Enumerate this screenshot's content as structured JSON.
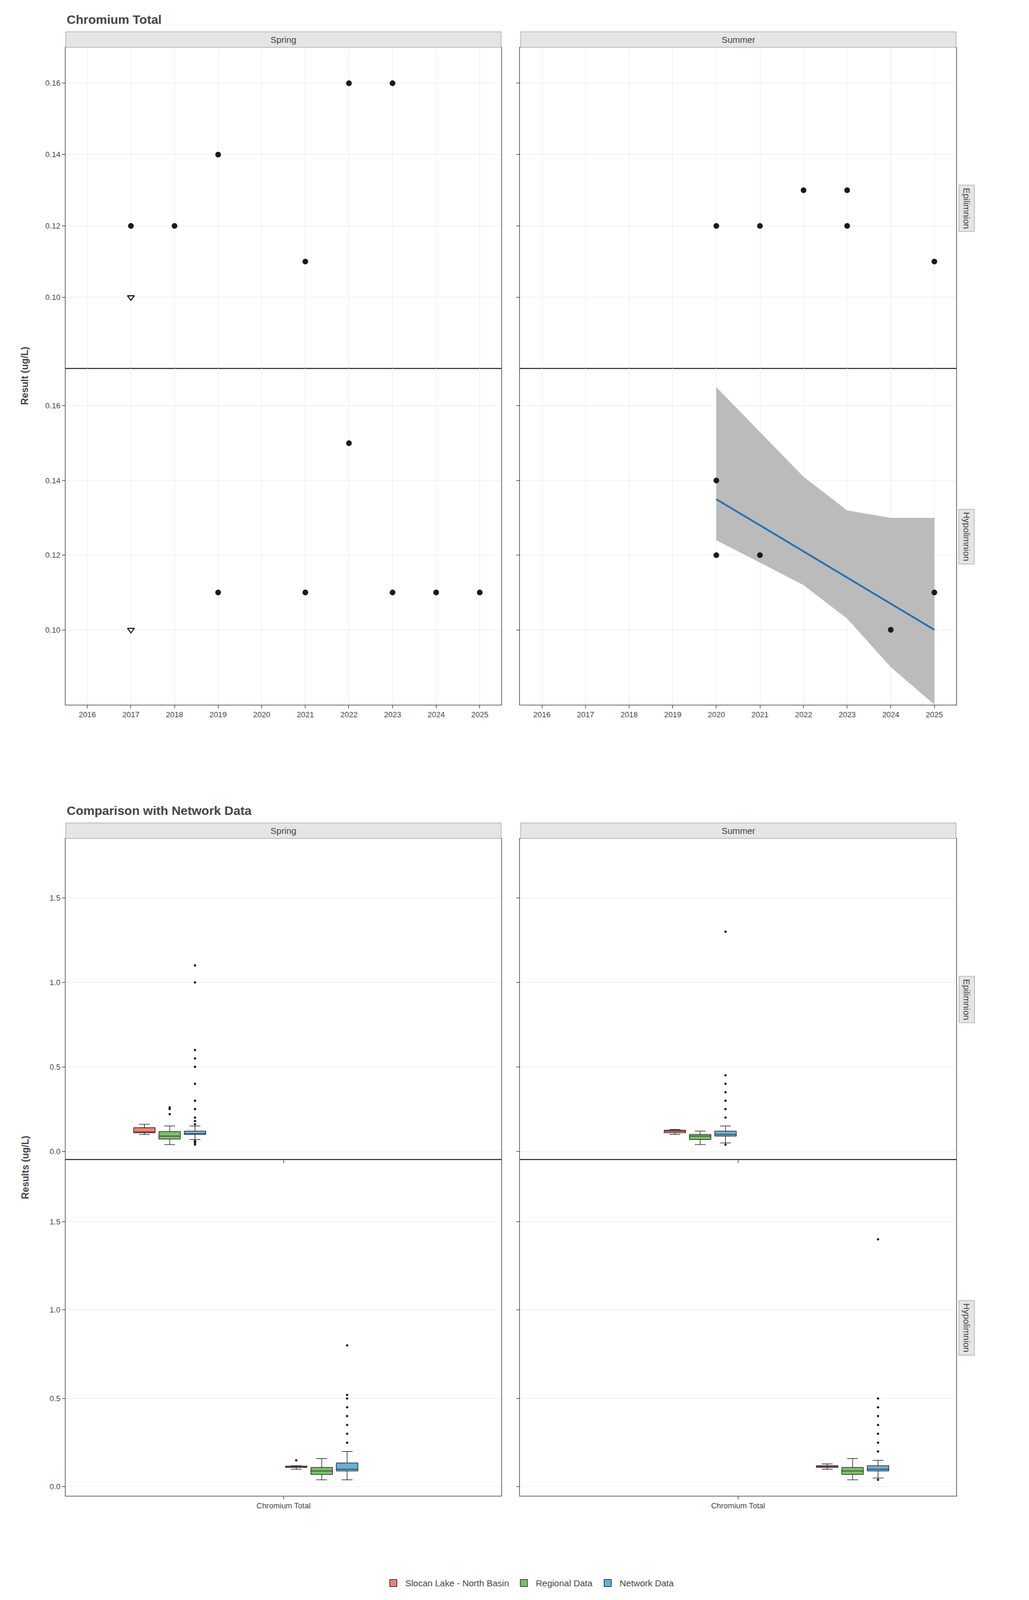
{
  "chart_data": [
    {
      "type": "scatter",
      "title": "Chromium Total",
      "y_label": "Result (ug/L)",
      "column_labels": [
        "Spring",
        "Summer"
      ],
      "row_labels": [
        "Epilimnion",
        "Hypolimnion"
      ],
      "xlim": [
        2015.5,
        2025.5
      ],
      "xticks": [
        2016,
        2017,
        2018,
        2019,
        2020,
        2021,
        2022,
        2023,
        2024,
        2025
      ],
      "ylim": [
        0.08,
        0.17
      ],
      "yticks": [
        {
          "value": 0.1,
          "label": "0.10"
        },
        0.12,
        0.14,
        0.16
      ],
      "grid": true,
      "panels": [
        {
          "series": [
            {
              "type": "scatter",
              "marker": "circle",
              "color": "#1A1A1A",
              "x": [
                2017,
                2018,
                2019,
                2022,
                2023,
                2021
              ],
              "values": [
                0.12,
                0.12,
                0.14,
                0.16,
                0.16,
                0.11
              ]
            },
            {
              "type": "scatter",
              "marker": "triangle-down-open",
              "color": "#000000",
              "x": [
                2017
              ],
              "values": [
                0.1
              ]
            }
          ]
        },
        {
          "series": [
            {
              "type": "scatter",
              "marker": "circle",
              "color": "#1A1A1A",
              "x": [
                2020,
                2021,
                2022,
                2023,
                2023,
                2025
              ],
              "values": [
                0.12,
                0.12,
                0.13,
                0.13,
                0.12,
                0.11
              ]
            }
          ]
        },
        {
          "series": [
            {
              "type": "scatter",
              "marker": "circle",
              "color": "#1A1A1A",
              "x": [
                2019,
                2021,
                2022,
                2023,
                2024,
                2025
              ],
              "values": [
                0.11,
                0.11,
                0.15,
                0.11,
                0.11,
                0.11
              ]
            },
            {
              "type": "scatter",
              "marker": "triangle-down-open",
              "color": "#000000",
              "x": [
                2017
              ],
              "values": [
                0.1
              ]
            }
          ]
        },
        {
          "series": [
            {
              "type": "band",
              "color": "#BBBBBB",
              "x": [
                2020,
                2021,
                2022,
                2023,
                2024,
                2025
              ],
              "upper": [
                0.165,
                0.153,
                0.141,
                0.132,
                0.13,
                0.13
              ],
              "lower": [
                0.124,
                0.118,
                0.112,
                0.103,
                0.09,
                0.08
              ]
            },
            {
              "type": "scatter",
              "marker": "circle",
              "color": "#1A1A1A",
              "x": [
                2020,
                2020,
                2021,
                2024,
                2025
              ],
              "values": [
                0.14,
                0.12,
                0.12,
                0.1,
                0.11
              ]
            },
            {
              "type": "line",
              "color": "#2171B5",
              "x": [
                2020,
                2021,
                2022,
                2023,
                2024,
                2025
              ],
              "values": [
                0.135,
                0.128,
                0.121,
                0.114,
                0.107,
                0.1
              ]
            }
          ]
        }
      ]
    },
    {
      "type": "box",
      "title": "Comparison with Network Data",
      "y_label": "Results (ug/L)",
      "column_labels": [
        "Spring",
        "Summer"
      ],
      "row_labels": [
        "Epilimnion",
        "Hypolimnion"
      ],
      "categories": [
        "Chromium Total"
      ],
      "ylim": [
        -0.05,
        1.85
      ],
      "yticks": [
        {
          "value": 0.0,
          "label": "0.0"
        },
        0.5,
        {
          "value": 1.0,
          "label": "1.0"
        },
        1.5
      ],
      "grid": "y",
      "legend": "bottom",
      "panels": [
        {
          "series": [
            {
              "name": "Slocan Lake - North Basin",
              "color": "#E8827A",
              "values": [
                0.1,
                0.11,
                0.12,
                0.12,
                0.14,
                0.11,
                0.11,
                0.16,
                0.16,
                0.11
              ]
            },
            {
              "name": "Regional Data",
              "color": "#7BBF6A",
              "values": [
                0.04,
                0.05,
                0.06,
                0.07,
                0.08,
                0.09,
                0.1,
                0.1,
                0.11,
                0.12,
                0.14,
                0.15,
                0.08,
                0.07,
                0.06,
                0.09,
                0.1,
                0.11,
                0.09,
                0.08,
                0.26,
                0.25,
                0.22
              ]
            },
            {
              "name": "Network Data",
              "color": "#6BAED6",
              "values": [
                0.04,
                0.05,
                0.05,
                0.06,
                0.06,
                0.07,
                0.07,
                0.08,
                0.08,
                0.09,
                0.09,
                0.1,
                0.1,
                0.1,
                0.1,
                0.1,
                0.1,
                0.1,
                0.1,
                0.1,
                0.1,
                0.1,
                0.1,
                0.1,
                0.1,
                0.1,
                0.1,
                0.1,
                0.1,
                0.1,
                0.1,
                0.1,
                0.11,
                0.11,
                0.11,
                0.11,
                0.11,
                0.11,
                0.11,
                0.11,
                0.11,
                0.11,
                0.11,
                0.11,
                0.12,
                0.12,
                0.12,
                0.13,
                0.14,
                0.15,
                0.16,
                0.18,
                0.2,
                0.25,
                0.3,
                0.4,
                0.5,
                0.55,
                0.6,
                1.0,
                1.1
              ]
            }
          ]
        },
        {
          "series": [
            {
              "name": "Slocan Lake - North Basin",
              "color": "#E8827A",
              "values": [
                0.1,
                0.11,
                0.12,
                0.13,
                0.12,
                0.11,
                0.12,
                0.13
              ]
            },
            {
              "name": "Regional Data",
              "color": "#7BBF6A",
              "values": [
                0.04,
                0.05,
                0.06,
                0.07,
                0.08,
                0.09,
                0.1,
                0.1,
                0.11,
                0.12,
                0.08,
                0.07,
                0.09,
                0.1,
                0.11,
                0.09,
                0.08
              ]
            },
            {
              "name": "Network Data",
              "color": "#6BAED6",
              "values": [
                0.04,
                0.05,
                0.05,
                0.06,
                0.06,
                0.07,
                0.07,
                0.08,
                0.08,
                0.09,
                0.09,
                0.1,
                0.1,
                0.1,
                0.1,
                0.1,
                0.1,
                0.1,
                0.1,
                0.1,
                0.1,
                0.1,
                0.11,
                0.11,
                0.11,
                0.11,
                0.11,
                0.11,
                0.12,
                0.12,
                0.15,
                0.2,
                0.25,
                0.3,
                0.35,
                0.4,
                0.45,
                1.3
              ]
            }
          ]
        },
        {
          "series": [
            {
              "name": "Slocan Lake - North Basin",
              "color": "#E8827A",
              "values": [
                0.1,
                0.11,
                0.12,
                0.11,
                0.15,
                0.11,
                0.11
              ]
            },
            {
              "name": "Regional Data",
              "color": "#7BBF6A",
              "values": [
                0.04,
                0.05,
                0.06,
                0.07,
                0.08,
                0.09,
                0.1,
                0.1,
                0.11,
                0.12,
                0.08,
                0.07,
                0.09,
                0.1,
                0.11,
                0.14,
                0.16
              ]
            },
            {
              "name": "Network Data",
              "color": "#6BAED6",
              "values": [
                0.04,
                0.05,
                0.05,
                0.06,
                0.06,
                0.07,
                0.07,
                0.08,
                0.08,
                0.09,
                0.09,
                0.1,
                0.1,
                0.1,
                0.1,
                0.1,
                0.1,
                0.1,
                0.1,
                0.1,
                0.1,
                0.1,
                0.11,
                0.11,
                0.11,
                0.11,
                0.11,
                0.11,
                0.12,
                0.12,
                0.15,
                0.2,
                0.25,
                0.3,
                0.35,
                0.4,
                0.45,
                0.5,
                0.52,
                0.8
              ]
            }
          ]
        },
        {
          "series": [
            {
              "name": "Slocan Lake - North Basin",
              "color": "#E8827A",
              "values": [
                0.1,
                0.11,
                0.12,
                0.12,
                0.13,
                0.11
              ]
            },
            {
              "name": "Regional Data",
              "color": "#7BBF6A",
              "values": [
                0.04,
                0.05,
                0.06,
                0.07,
                0.08,
                0.09,
                0.1,
                0.1,
                0.11,
                0.12,
                0.08,
                0.07,
                0.09,
                0.1,
                0.11,
                0.14,
                0.16
              ]
            },
            {
              "name": "Network Data",
              "color": "#6BAED6",
              "values": [
                0.04,
                0.05,
                0.05,
                0.06,
                0.06,
                0.07,
                0.07,
                0.08,
                0.08,
                0.09,
                0.09,
                0.1,
                0.1,
                0.1,
                0.1,
                0.1,
                0.1,
                0.1,
                0.1,
                0.1,
                0.1,
                0.1,
                0.11,
                0.11,
                0.11,
                0.11,
                0.11,
                0.11,
                0.12,
                0.12,
                0.15,
                0.2,
                0.25,
                0.3,
                0.35,
                0.4,
                0.45,
                0.5,
                1.4
              ]
            }
          ]
        }
      ]
    }
  ]
}
